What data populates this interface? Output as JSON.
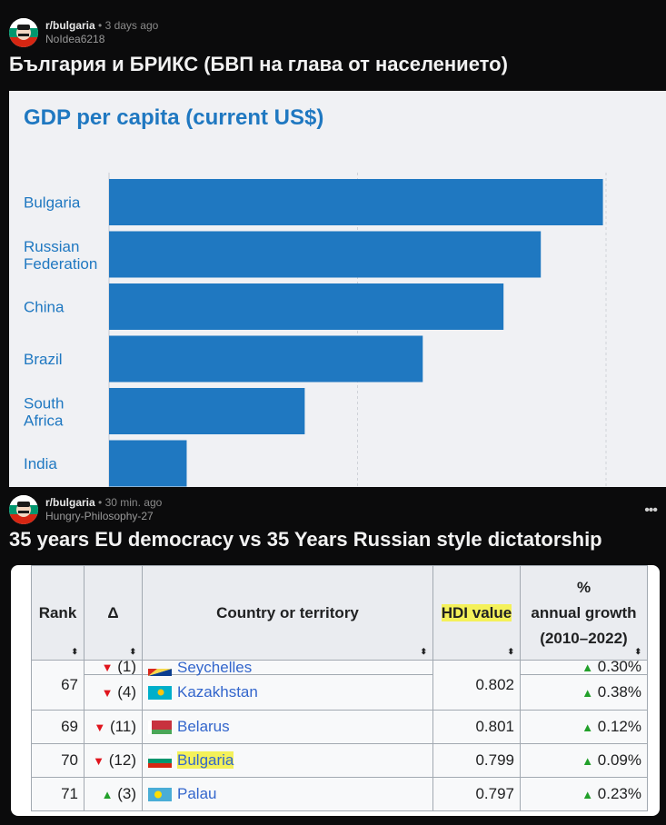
{
  "post1": {
    "subreddit": "r/bulgaria",
    "separator": "•",
    "time": "3 days ago",
    "user": "NoIdea6218",
    "title": "България и БРИКС (БВП на глава от населението)"
  },
  "chart_data": {
    "type": "bar",
    "orientation": "horizontal",
    "title": "GDP per capita (current US$)",
    "categories": [
      "Bulgaria",
      "Russian Federation",
      "China",
      "Brazil",
      "South Africa",
      "India"
    ],
    "values": [
      15.9,
      13.9,
      12.7,
      10.1,
      6.3,
      2.5
    ],
    "xlim": [
      0,
      16
    ],
    "grid": true,
    "colors": {
      "bar": "#1f78c1",
      "label": "#1f78c1"
    }
  },
  "post2": {
    "subreddit": "r/bulgaria",
    "separator": "•",
    "time": "30 min. ago",
    "user": "Hungry-Philosophy-27",
    "title": "35 years EU democracy vs 35 Years Russian style dictatorship",
    "more_icon": "more-horizontal-icon"
  },
  "hdi_table": {
    "headers": {
      "rank": "Rank",
      "delta": "Δ",
      "country": "Country or territory",
      "hdi": "HDI value",
      "growth_pct": "%",
      "growth_line1": "annual growth",
      "growth_line2": "(2010–2022)"
    },
    "rows": [
      {
        "rank": "",
        "dir": "down",
        "change": "(1)",
        "country": "Seychelles",
        "hdi": "",
        "growth": "0.30%"
      },
      {
        "rank": "67",
        "dir": "down",
        "change": "(4)",
        "country": "Kazakhstan",
        "hdi": "0.802",
        "growth": "0.38%"
      },
      {
        "rank": "69",
        "dir": "down",
        "change": "(11)",
        "country": "Belarus",
        "hdi": "0.801",
        "growth": "0.12%"
      },
      {
        "rank": "70",
        "dir": "down",
        "change": "(12)",
        "country": "Bulgaria",
        "hdi": "0.799",
        "growth": "0.09%"
      },
      {
        "rank": "71",
        "dir": "up",
        "change": "(3)",
        "country": "Palau",
        "hdi": "0.797",
        "growth": "0.23%"
      }
    ],
    "arrows": {
      "up": "▲",
      "down": "▼"
    },
    "colors": {
      "highlight": "#f4f15a",
      "up": "#22a02a",
      "down": "#e0151d",
      "link": "#3366cc"
    }
  }
}
